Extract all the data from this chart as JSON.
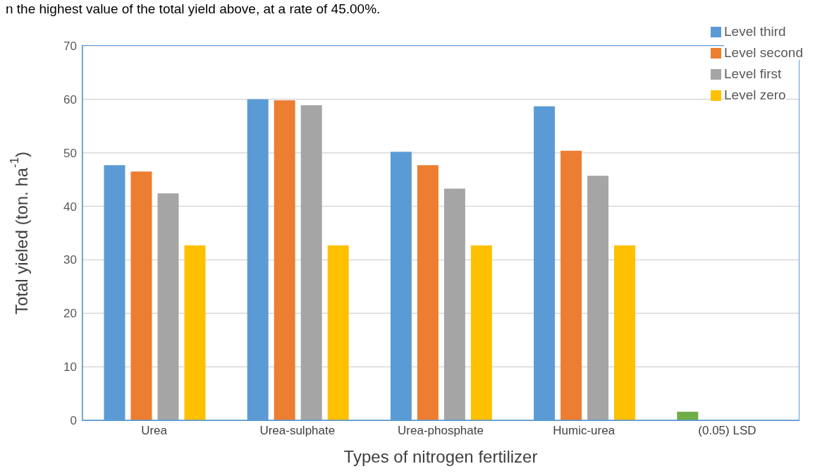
{
  "chart_data": {
    "type": "bar",
    "xlabel": "Types of nitrogen fertilizer",
    "ylabel": "Total yieled (ton. ha$^{-1}$)",
    "annotations": [
      "n the highest value of the total yield above, at a rate of 45.00%."
    ],
    "categories": [
      "Urea",
      "Urea-sulphate",
      "Urea-phosphate",
      "Humic-urea",
      "(0.05) LSD"
    ],
    "series": [
      {
        "name": "Level third",
        "color": "#5b9bd5",
        "colors": [
          "#5b9bd5",
          "#5b9bd5",
          "#5b9bd5",
          "#5b9bd5",
          "#70ad47"
        ],
        "values": [
          47.7,
          60.0,
          50.2,
          58.7,
          1.6
        ]
      },
      {
        "name": "Level second",
        "color": "#ed7d31",
        "values": [
          46.5,
          59.8,
          47.7,
          50.4,
          null
        ]
      },
      {
        "name": "Level first",
        "color": "#a5a5a5",
        "values": [
          42.4,
          58.9,
          43.3,
          45.7,
          null
        ]
      },
      {
        "name": "Level zero",
        "color": "#ffc000",
        "values": [
          32.7,
          32.7,
          32.7,
          32.7,
          null
        ]
      }
    ],
    "ylim": [
      0,
      70
    ],
    "yticks": [
      0,
      10,
      20,
      30,
      40,
      50,
      60,
      70
    ],
    "grid": "y",
    "legend": "top right"
  }
}
